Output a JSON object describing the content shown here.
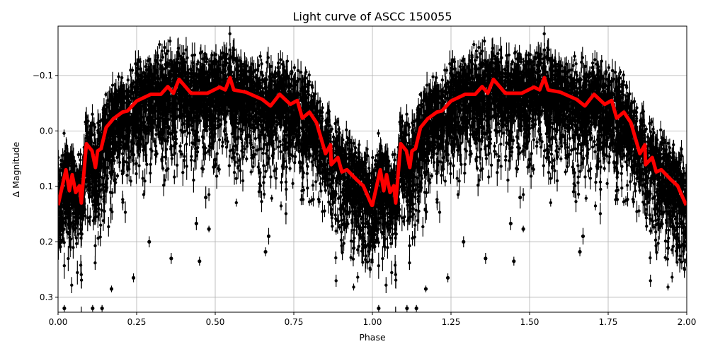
{
  "chart_data": {
    "type": "scatter",
    "title": "Light curve of ASCC 150055",
    "xlabel": "Phase",
    "ylabel": "Δ Magnitude",
    "xlim": [
      0,
      2
    ],
    "ylim": [
      0.327,
      -0.189
    ],
    "y_inverted": true,
    "grid": true,
    "x_ticks": [
      "0.00",
      "0.25",
      "0.50",
      "0.75",
      "1.00",
      "1.25",
      "1.50",
      "1.75",
      "2.00"
    ],
    "x_tick_values": [
      0,
      0.25,
      0.5,
      0.75,
      1,
      1.25,
      1.5,
      1.75,
      2
    ],
    "y_ticks": [
      "−0.1",
      "0.0",
      "0.1",
      "0.2",
      "0.3"
    ],
    "y_tick_values": [
      -0.1,
      0,
      0.1,
      0.2,
      0.3
    ],
    "colors": {
      "points": "#000000",
      "curve": "#ff0000",
      "grid": "#b0b0b0"
    },
    "binned_curve": {
      "phase": [
        0,
        0.025,
        0.036,
        0.045,
        0.056,
        0.068,
        0.074,
        0.09,
        0.108,
        0.119,
        0.126,
        0.137,
        0.153,
        0.176,
        0.205,
        0.221,
        0.25,
        0.295,
        0.327,
        0.349,
        0.367,
        0.385,
        0.423,
        0.475,
        0.514,
        0.532,
        0.547,
        0.559,
        0.597,
        0.649,
        0.676,
        0.705,
        0.739,
        0.761,
        0.777,
        0.8,
        0.822,
        0.851,
        0.867,
        0.869,
        0.89,
        0.903,
        0.919,
        0.948,
        0.971,
        0.998
      ],
      "magnitude": [
        0.134,
        0.07,
        0.108,
        0.079,
        0.111,
        0.099,
        0.13,
        0.023,
        0.036,
        0.066,
        0.036,
        0.032,
        -0.006,
        -0.022,
        -0.034,
        -0.036,
        -0.054,
        -0.066,
        -0.066,
        -0.08,
        -0.068,
        -0.093,
        -0.068,
        -0.068,
        -0.079,
        -0.074,
        -0.096,
        -0.074,
        -0.07,
        -0.057,
        -0.045,
        -0.066,
        -0.048,
        -0.055,
        -0.023,
        -0.034,
        -0.015,
        0.041,
        0.025,
        0.061,
        0.048,
        0.074,
        0.07,
        0.087,
        0.099,
        0.134
      ]
    },
    "outlier_points": [
      {
        "x": 0.47,
        "y": 0.12,
        "err": 0.02
      },
      {
        "x": 0.44,
        "y": 0.167,
        "err": 0.012
      },
      {
        "x": 0.48,
        "y": 0.177,
        "err": 0.006
      },
      {
        "x": 0.45,
        "y": 0.235,
        "err": 0.008
      },
      {
        "x": 0.36,
        "y": 0.23,
        "err": 0.01
      },
      {
        "x": 0.29,
        "y": 0.2,
        "err": 0.01
      },
      {
        "x": 0.66,
        "y": 0.218,
        "err": 0.008
      },
      {
        "x": 0.67,
        "y": 0.19,
        "err": 0.015
      },
      {
        "x": 0.24,
        "y": 0.265,
        "err": 0.008
      },
      {
        "x": 0.17,
        "y": 0.285,
        "err": 0.006
      },
      {
        "x": 0.14,
        "y": 0.32,
        "err": 0.006
      },
      {
        "x": 0.11,
        "y": 0.32,
        "err": 0.006
      },
      {
        "x": 0.02,
        "y": 0.32,
        "err": 0.006
      }
    ]
  }
}
